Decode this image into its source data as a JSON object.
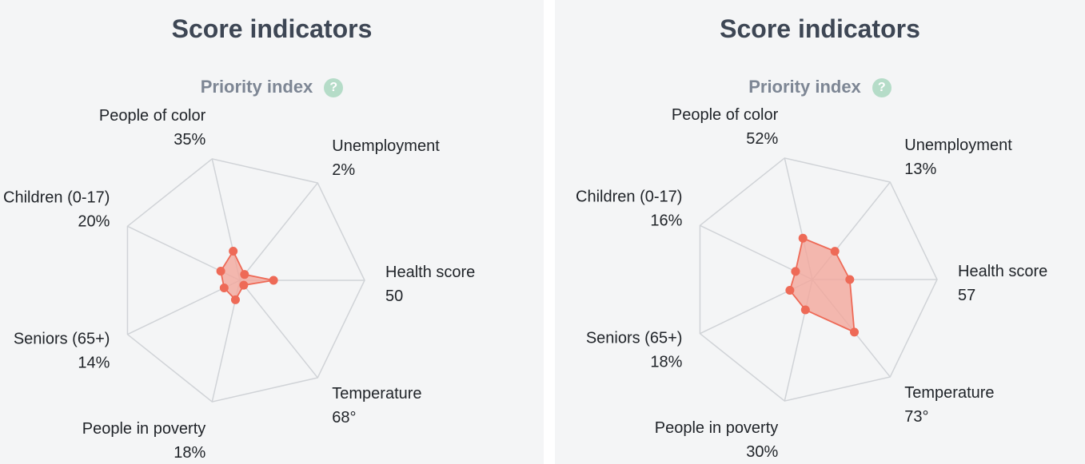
{
  "colors": {
    "grid": "#d0d3d7",
    "fill": "#f3a79c",
    "stroke": "#ee6a57",
    "point": "#ee6a57"
  },
  "icons": {
    "help": "question-circle-icon"
  },
  "chart_data": [
    {
      "type": "radar",
      "title": "Score indicators",
      "subtitle": "Priority index",
      "help_symbol": "?",
      "grid": true,
      "axes": [
        "Health score",
        "Unemployment",
        "People of color",
        "Children (0-17)",
        "Seniors (65+)",
        "People in poverty",
        "Temperature"
      ],
      "value_labels": [
        "50",
        "2%",
        "35%",
        "20%",
        "14%",
        "18%",
        "68°"
      ],
      "values": [
        0.27,
        0.06,
        0.24,
        0.17,
        0.14,
        0.16,
        0.05
      ],
      "range": [
        0,
        1
      ]
    },
    {
      "type": "radar",
      "title": "Score indicators",
      "subtitle": "Priority index",
      "help_symbol": "?",
      "grid": true,
      "axes": [
        "Health score",
        "Unemployment",
        "People of color",
        "Children (0-17)",
        "Seniors (65+)",
        "People in poverty",
        "Temperature"
      ],
      "value_labels": [
        "57",
        "13%",
        "52%",
        "16%",
        "18%",
        "30%",
        "73°"
      ],
      "values": [
        0.3,
        0.29,
        0.34,
        0.15,
        0.2,
        0.25,
        0.54
      ],
      "range": [
        0,
        1
      ]
    }
  ]
}
